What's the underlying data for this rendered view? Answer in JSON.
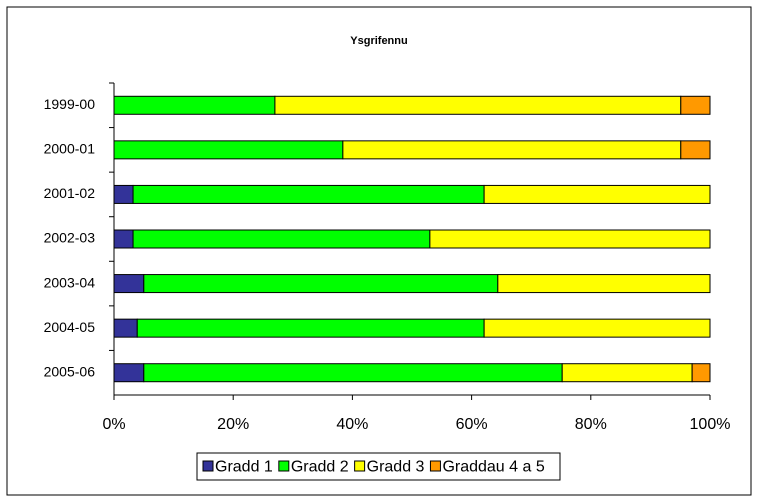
{
  "chart_data": {
    "type": "stacked-barh",
    "title": "Ysgrifennu",
    "categories": [
      "1999-00",
      "2000-01",
      "2001-02",
      "2002-03",
      "2003-04",
      "2004-05",
      "2005-06"
    ],
    "series": [
      {
        "name": "Gradd 1",
        "color": "#333399",
        "values": [
          0,
          0,
          3.2,
          3.2,
          5.0,
          3.9,
          5.0
        ]
      },
      {
        "name": "Gradd 2",
        "color": "#00ff00",
        "values": [
          27.0,
          38.4,
          58.9,
          49.8,
          59.4,
          58.2,
          70.2
        ]
      },
      {
        "name": "Gradd 3",
        "color": "#ffff00",
        "values": [
          68.1,
          56.7,
          37.9,
          47.0,
          35.6,
          37.9,
          21.8
        ]
      },
      {
        "name": "Graddau 4 a 5",
        "color": "#ff9900",
        "values": [
          4.9,
          4.9,
          0,
          0,
          0,
          0,
          3.0
        ]
      }
    ],
    "xlim": [
      0,
      100
    ],
    "xticks": [
      {
        "value": 0,
        "label": "0%"
      },
      {
        "value": 20,
        "label": "20%"
      },
      {
        "value": 40,
        "label": "40%"
      },
      {
        "value": 60,
        "label": "60%"
      },
      {
        "value": 80,
        "label": "80%"
      },
      {
        "value": 100,
        "label": "100%"
      }
    ],
    "legend": "bottom"
  }
}
